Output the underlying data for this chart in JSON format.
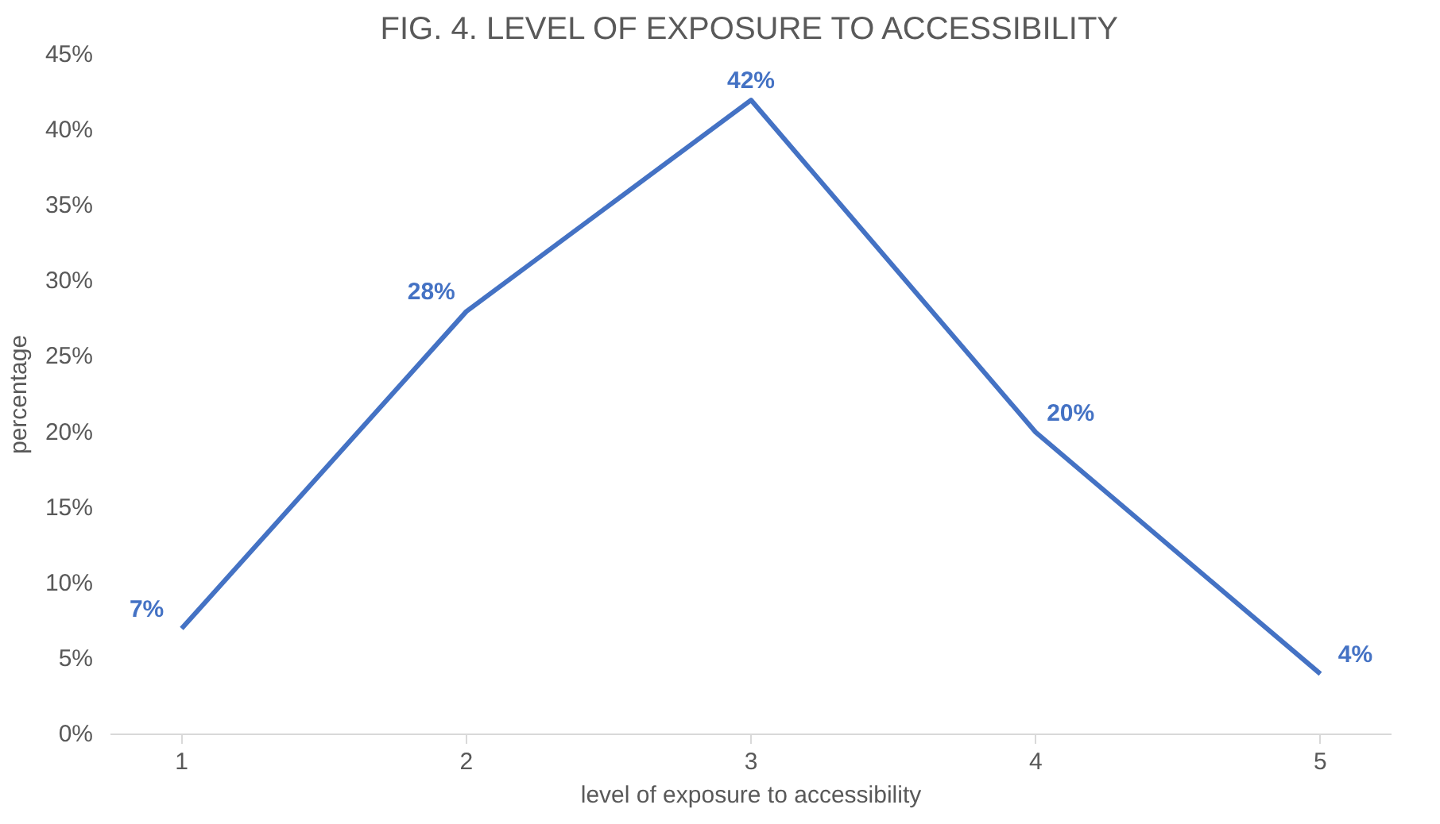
{
  "chart_data": {
    "type": "line",
    "title": "FIG. 4. LEVEL OF EXPOSURE TO ACCESSIBILITY",
    "xlabel": "level of exposure to accessibility",
    "ylabel": "percentage",
    "categories": [
      "1",
      "2",
      "3",
      "4",
      "5"
    ],
    "series": [
      {
        "color": "#4472c4",
        "values": [
          7,
          28,
          42,
          20,
          4
        ],
        "value_labels": [
          "7%",
          "28%",
          "42%",
          "20%",
          "4%"
        ]
      }
    ],
    "ylim": [
      0,
      45
    ],
    "yticks": [
      {
        "value": 0,
        "label": "0%"
      },
      {
        "value": 5,
        "label": "5%"
      },
      {
        "value": 10,
        "label": "10%"
      },
      {
        "value": 15,
        "label": "15%"
      },
      {
        "value": 20,
        "label": "20%"
      },
      {
        "value": 25,
        "label": "25%"
      },
      {
        "value": 30,
        "label": "30%"
      },
      {
        "value": 35,
        "label": "35%"
      },
      {
        "value": 40,
        "label": "40%"
      },
      {
        "value": 45,
        "label": "45%"
      }
    ],
    "grid": false,
    "line_style": "solid"
  }
}
